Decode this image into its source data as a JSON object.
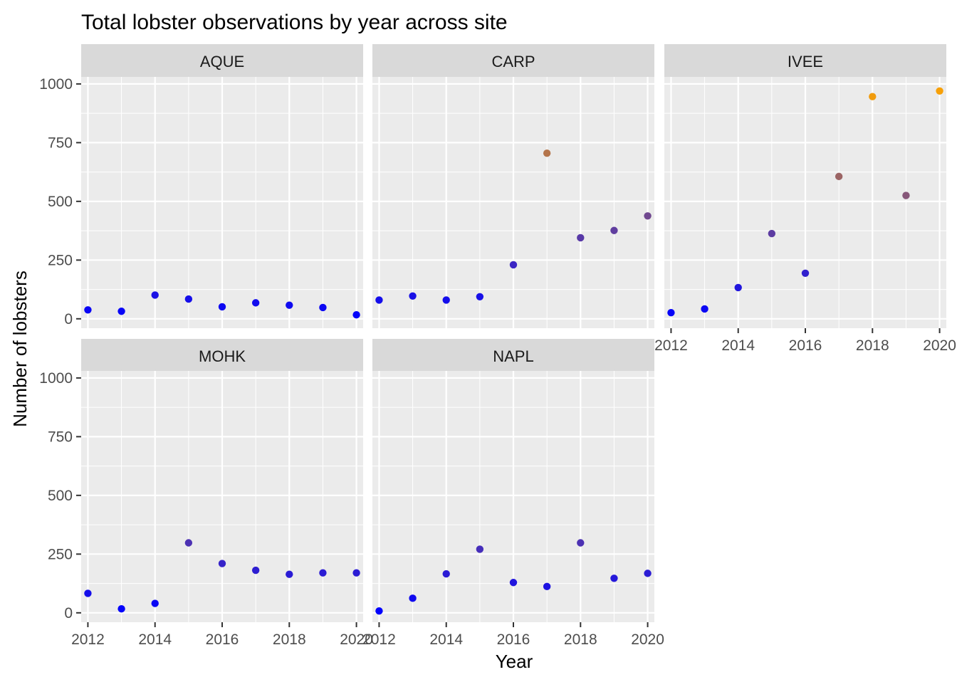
{
  "chart_data": {
    "type": "scatter",
    "title": "Total lobster observations by year across site",
    "xlabel": "Year",
    "ylabel": "Number of lobsters",
    "xlim": [
      2011.8,
      2020.2
    ],
    "ylim": [
      -40,
      1030
    ],
    "x_ticks": [
      "2012",
      "2014",
      "2016",
      "2018",
      "2020"
    ],
    "y_ticks": [
      "0",
      "250",
      "500",
      "750",
      "1000"
    ],
    "grid": true,
    "legend": "none",
    "color_scale": {
      "low": "#0000ff",
      "high": "#ffa500",
      "low_value": 0,
      "high_value": 1000
    },
    "panels": [
      {
        "name": "AQUE",
        "x": [
          2012,
          2013,
          2014,
          2015,
          2016,
          2017,
          2018,
          2019,
          2020
        ],
        "values": [
          38,
          32,
          101,
          84,
          51,
          68,
          58,
          48,
          17
        ]
      },
      {
        "name": "CARP",
        "x": [
          2012,
          2013,
          2014,
          2015,
          2016,
          2017,
          2018,
          2019,
          2020
        ],
        "values": [
          80,
          97,
          80,
          94,
          230,
          705,
          345,
          376,
          438
        ]
      },
      {
        "name": "IVEE",
        "x": [
          2012,
          2013,
          2014,
          2015,
          2016,
          2017,
          2018,
          2019,
          2020
        ],
        "values": [
          26,
          42,
          133,
          363,
          194,
          606,
          946,
          525,
          970
        ]
      },
      {
        "name": "MOHK",
        "x": [
          2012,
          2013,
          2014,
          2015,
          2016,
          2017,
          2018,
          2019,
          2020
        ],
        "values": [
          83,
          17,
          40,
          298,
          210,
          181,
          164,
          170,
          170
        ]
      },
      {
        "name": "NAPL",
        "x": [
          2012,
          2013,
          2014,
          2015,
          2016,
          2017,
          2018,
          2019,
          2020
        ],
        "values": [
          8,
          62,
          166,
          271,
          129,
          112,
          298,
          147,
          168
        ]
      }
    ]
  }
}
